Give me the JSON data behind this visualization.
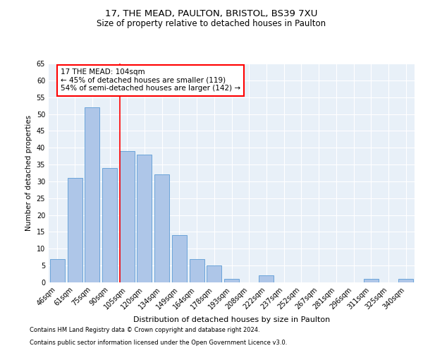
{
  "title1": "17, THE MEAD, PAULTON, BRISTOL, BS39 7XU",
  "title2": "Size of property relative to detached houses in Paulton",
  "xlabel": "Distribution of detached houses by size in Paulton",
  "ylabel": "Number of detached properties",
  "bar_labels": [
    "46sqm",
    "61sqm",
    "75sqm",
    "90sqm",
    "105sqm",
    "120sqm",
    "134sqm",
    "149sqm",
    "164sqm",
    "178sqm",
    "193sqm",
    "208sqm",
    "222sqm",
    "237sqm",
    "252sqm",
    "267sqm",
    "281sqm",
    "296sqm",
    "311sqm",
    "325sqm",
    "340sqm"
  ],
  "bar_values": [
    7,
    31,
    52,
    34,
    39,
    38,
    32,
    14,
    7,
    5,
    1,
    0,
    2,
    0,
    0,
    0,
    0,
    0,
    1,
    0,
    1
  ],
  "bar_color": "#aec6e8",
  "bar_edge_color": "#5b9bd5",
  "vline_index": 4,
  "annotation_text": "17 THE MEAD: 104sqm\n← 45% of detached houses are smaller (119)\n54% of semi-detached houses are larger (142) →",
  "annotation_box_color": "white",
  "annotation_box_edge_color": "red",
  "vline_color": "red",
  "ylim": [
    0,
    65
  ],
  "yticks": [
    0,
    5,
    10,
    15,
    20,
    25,
    30,
    35,
    40,
    45,
    50,
    55,
    60,
    65
  ],
  "bg_color": "#e8f0f8",
  "fig_bg_color": "white",
  "footer1": "Contains HM Land Registry data © Crown copyright and database right 2024.",
  "footer2": "Contains public sector information licensed under the Open Government Licence v3.0.",
  "title1_fontsize": 9.5,
  "title2_fontsize": 8.5,
  "xlabel_fontsize": 8,
  "ylabel_fontsize": 7.5,
  "tick_fontsize": 7,
  "annotation_fontsize": 7.5,
  "footer_fontsize": 6
}
